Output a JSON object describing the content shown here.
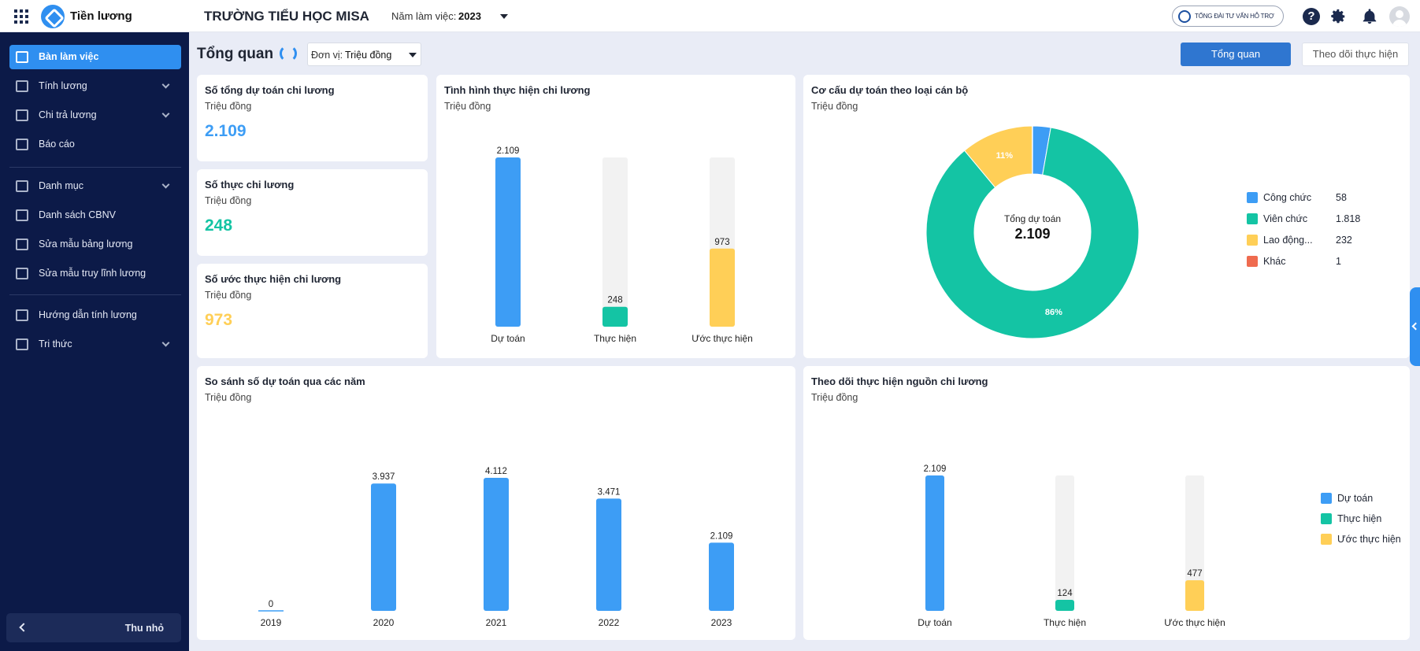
{
  "app": {
    "name": "Tiền lương",
    "school": "TRƯỜNG TIỂU HỌC MISA",
    "year_label": "Năm làm việc:",
    "year": "2023",
    "support": "TỔNG ĐÀI TƯ VẤN HỖ TRỢ"
  },
  "icons": {
    "apps": "apps-grid-icon",
    "help": "help-icon",
    "settings": "gear-icon",
    "notifications": "bell-icon",
    "user": "avatar-icon"
  },
  "sidebar": {
    "items": [
      {
        "label": "Bàn làm việc",
        "icon": "desk-icon",
        "active": true
      },
      {
        "label": "Tính lương",
        "icon": "calculator-icon",
        "expandable": true
      },
      {
        "label": "Chi trả lương",
        "icon": "card-icon",
        "expandable": true
      },
      {
        "label": "Báo cáo",
        "icon": "report-icon"
      },
      {
        "label": "Danh mục",
        "icon": "list-icon",
        "expandable": true
      },
      {
        "label": "Danh sách CBNV",
        "icon": "person-icon"
      },
      {
        "label": "Sửa mẫu bảng lương",
        "icon": "template-icon"
      },
      {
        "label": "Sửa mẫu truy lĩnh lương",
        "icon": "template-icon"
      },
      {
        "label": "Hướng dẫn tính lương",
        "icon": "guide-icon"
      },
      {
        "label": "Tri thức",
        "icon": "cube-icon",
        "expandable": true
      }
    ],
    "collapse_label": "Thu nhỏ"
  },
  "header": {
    "title": "Tổng quan",
    "unit_label": "Đơn vị:",
    "unit_value": "Triệu đồng",
    "tab_overview": "Tổng quan",
    "tab_tracking": "Theo dõi thực hiện"
  },
  "colors": {
    "primary": "#2f8ff0",
    "teal": "#14c4a4",
    "yellow": "#ffcf57",
    "red": "#ef6b4f",
    "track": "#f2f2f2"
  },
  "kpis": [
    {
      "title": "Số tổng dự toán chi lương",
      "unit": "Triệu đồng",
      "value": "2.109",
      "color": "#3d9df5"
    },
    {
      "title": "Số thực chi lương",
      "unit": "Triệu đồng",
      "value": "248",
      "color": "#14c4a4"
    },
    {
      "title": "Số ước thực hiện chi lương",
      "unit": "Triệu đồng",
      "value": "973",
      "color": "#ffcf57"
    }
  ],
  "chart_data": [
    {
      "id": "tinh-hinh",
      "type": "bar",
      "title": "Tình hình thực hiện chi lương",
      "unit": "Triệu đồng",
      "categories": [
        "Dự toán",
        "Thực hiện",
        "Ước thực hiện"
      ],
      "values": [
        2109,
        248,
        973
      ],
      "value_labels": [
        "2.109",
        "248",
        "973"
      ],
      "colors": [
        "#3d9df5",
        "#14c4a4",
        "#ffcf57"
      ],
      "ylim": [
        0,
        2109
      ],
      "background_track": true
    },
    {
      "id": "co-cau",
      "type": "pie",
      "title": "Cơ cấu dự toán theo loại cán bộ",
      "unit": "Triệu đồng",
      "center_label": "Tổng dự toán",
      "center_value": "2.109",
      "labels": [
        "Công chức",
        "Viên chức",
        "Lao động...",
        "Khác"
      ],
      "values": [
        58,
        1818,
        232,
        1
      ],
      "value_labels": [
        "58",
        "1.818",
        "232",
        "1"
      ],
      "colors": [
        "#3d9df5",
        "#14c4a4",
        "#ffcf57",
        "#ef6b4f"
      ],
      "slice_labels": {
        "1": "86%",
        "2": "11%"
      }
    },
    {
      "id": "so-sanh",
      "type": "bar",
      "title": "So sánh số dự toán qua các năm",
      "unit": "Triệu đồng",
      "categories": [
        "2019",
        "2020",
        "2021",
        "2022",
        "2023"
      ],
      "values": [
        0,
        3937,
        4112,
        3471,
        2109
      ],
      "value_labels": [
        "0",
        "3.937",
        "4.112",
        "3.471",
        "2.109"
      ],
      "colors": [
        "#3d9df5",
        "#3d9df5",
        "#3d9df5",
        "#3d9df5",
        "#3d9df5"
      ],
      "ylim": [
        0,
        4112
      ]
    },
    {
      "id": "theo-doi",
      "type": "bar",
      "title": "Theo dõi thực hiện nguồn chi lương",
      "unit": "Triệu đồng",
      "categories": [
        "Dự toán",
        "Thực hiện",
        "Ước thực hiện"
      ],
      "values": [
        2109,
        124,
        477
      ],
      "value_labels": [
        "2.109",
        "124",
        "477"
      ],
      "colors": [
        "#3d9df5",
        "#14c4a4",
        "#ffcf57"
      ],
      "ylim": [
        0,
        2109
      ],
      "background_track": true,
      "legend": [
        "Dự toán",
        "Thực hiện",
        "Ước thực hiện"
      ],
      "legend_position": "right"
    }
  ]
}
